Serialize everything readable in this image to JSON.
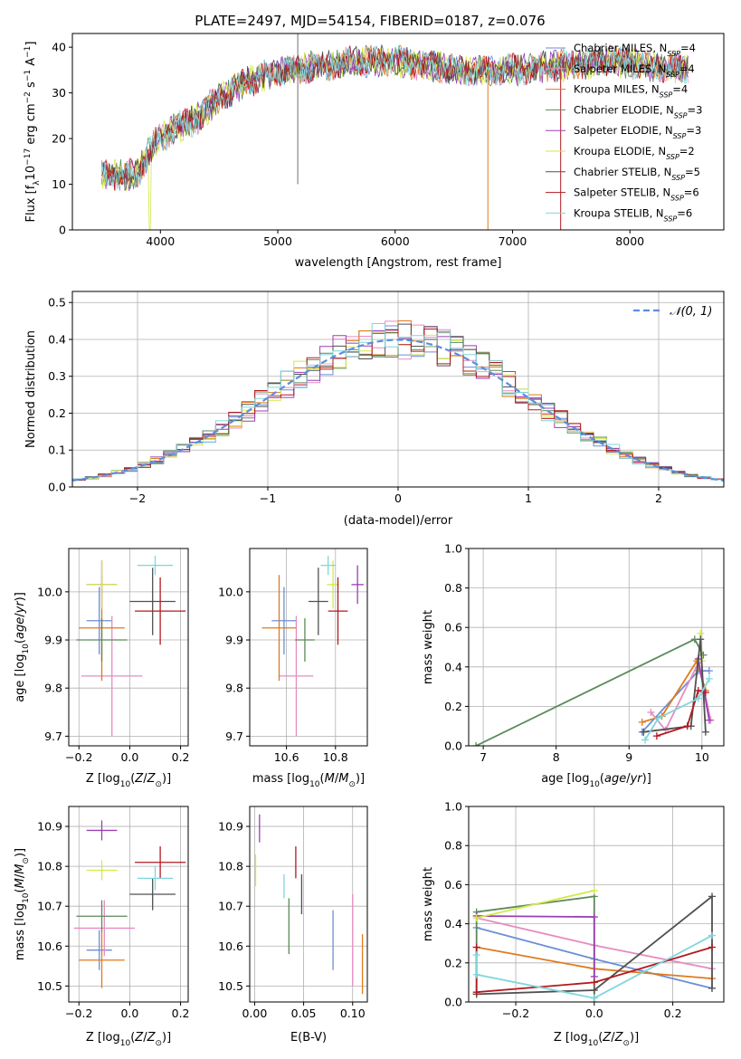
{
  "colors": {
    "Chabrier MILES": "#6b8fd6",
    "Salpeter MILES": "#e68cc0",
    "Kroupa MILES": "#e07a1f",
    "Chabrier ELODIE": "#5a8a5a",
    "Salpeter ELODIE": "#9b3fb5",
    "Kroupa ELODIE": "#d4e84a",
    "Chabrier STELIB": "#505050",
    "Salpeter STELIB": "#b3181f",
    "Kroupa STELIB": "#7fd6dc"
  },
  "chart_data": [
    {
      "type": "line",
      "title": "PLATE=2497, MJD=54154, FIBERID=0187, z=0.076",
      "xlabel": "wavelength [Angstrom, rest frame]",
      "ylabel": "Flux [f_λ10^-17 erg cm^-2 s^-1 A^-1]",
      "xlim": [
        3250,
        8800
      ],
      "ylim": [
        0,
        43
      ],
      "xticks": [
        "4000",
        "5000",
        "6000",
        "7000",
        "8000"
      ],
      "yticks": [
        "0",
        "10",
        "20",
        "30",
        "40"
      ],
      "legend_position": "right",
      "legend": [
        {
          "base": "Chabrier MILES, N",
          "sub": "SSP",
          "tail": "=4"
        },
        {
          "base": "Salpeter MILES, N",
          "sub": "SSP",
          "tail": "=4"
        },
        {
          "base": "Kroupa MILES, N",
          "sub": "SSP",
          "tail": "=4"
        },
        {
          "base": "Chabrier ELODIE, N",
          "sub": "SSP",
          "tail": "=3"
        },
        {
          "base": "Salpeter ELODIE, N",
          "sub": "SSP",
          "tail": "=3"
        },
        {
          "base": "Kroupa ELODIE, N",
          "sub": "SSP",
          "tail": "=2"
        },
        {
          "base": "Chabrier STELIB, N",
          "sub": "SSP",
          "tail": "=5"
        },
        {
          "base": "Salpeter STELIB, N",
          "sub": "SSP",
          "tail": "=6"
        },
        {
          "base": "Kroupa STELIB, N",
          "sub": "SSP",
          "tail": "=6"
        }
      ],
      "spectrum_knots": [
        [
          3500,
          12
        ],
        [
          3800,
          12
        ],
        [
          3950,
          19
        ],
        [
          4100,
          22
        ],
        [
          4300,
          24
        ],
        [
          4500,
          29
        ],
        [
          4700,
          32
        ],
        [
          4900,
          34
        ],
        [
          5100,
          35
        ],
        [
          5400,
          36
        ],
        [
          5700,
          37
        ],
        [
          6000,
          37
        ],
        [
          6300,
          36
        ],
        [
          6600,
          35
        ],
        [
          7000,
          35
        ],
        [
          7400,
          36
        ],
        [
          7800,
          37
        ],
        [
          8200,
          36
        ],
        [
          8500,
          35
        ]
      ],
      "grid": false
    },
    {
      "type": "step",
      "xlabel": "(data-model)/error",
      "ylabel": "Normed distribution",
      "xlim": [
        -2.5,
        2.5
      ],
      "ylim": [
        0,
        0.53
      ],
      "xticks": [
        {
          "v": -2,
          "label": "−2"
        },
        {
          "v": -1,
          "label": "−1"
        },
        {
          "v": 0,
          "label": "0"
        },
        {
          "v": 1,
          "label": "1"
        },
        {
          "v": 2,
          "label": "2"
        }
      ],
      "yticks": [
        "0.0",
        "0.1",
        "0.2",
        "0.3",
        "0.4",
        "0.5"
      ],
      "legend": "𝒩(0, 1)",
      "legend_position": "top-right",
      "bin_width": 0.1,
      "curve": "normal pdf, mean 0, sigma 1",
      "grid": true
    },
    {
      "type": "scatter",
      "xlabel": "Z [log10(Z/Z☉)]",
      "ylabel": "age [log10(age/yr)]",
      "xlim": [
        -0.24,
        0.23
      ],
      "ylim": [
        9.68,
        10.09
      ],
      "xticks": [
        "−0.2",
        "0.0",
        "0.2"
      ],
      "yticks": [
        "9.7",
        "9.8",
        "9.9",
        "10.0"
      ],
      "points": [
        {
          "model": "Chabrier MILES",
          "x": -0.12,
          "xerr": 0.05,
          "y": 9.94,
          "yerr": 0.07
        },
        {
          "model": "Salpeter MILES",
          "x": -0.07,
          "xerr": 0.12,
          "y": 9.825,
          "yerr": 0.125
        },
        {
          "model": "Kroupa MILES",
          "x": -0.11,
          "xerr": 0.09,
          "y": 9.925,
          "yerr": 0.11
        },
        {
          "model": "Chabrier ELODIE",
          "x": -0.11,
          "xerr": 0.1,
          "y": 9.9,
          "yerr": 0.045
        },
        {
          "model": "Salpeter ELODIE",
          "x": -0.11,
          "xerr": 0.06,
          "y": 10.015,
          "yerr": 0.05
        },
        {
          "model": "Kroupa ELODIE",
          "x": -0.11,
          "xerr": 0.06,
          "y": 10.015,
          "yerr": 0.05
        },
        {
          "model": "Chabrier STELIB",
          "x": 0.09,
          "xerr": 0.09,
          "y": 9.98,
          "yerr": 0.07
        },
        {
          "model": "Salpeter STELIB",
          "x": 0.12,
          "xerr": 0.1,
          "y": 9.96,
          "yerr": 0.07
        },
        {
          "model": "Kroupa STELIB",
          "x": 0.1,
          "xerr": 0.07,
          "y": 10.055,
          "yerr": 0.02
        }
      ],
      "grid": true
    },
    {
      "type": "scatter",
      "xlabel": "mass [log10(M/M☉)]",
      "ylabel": "",
      "xlim": [
        10.45,
        10.93
      ],
      "ylim": [
        9.68,
        10.09
      ],
      "xticks": [
        "10.6",
        "10.8"
      ],
      "yticks": [
        "9.7",
        "9.8",
        "9.9",
        "10.0"
      ],
      "points": [
        {
          "model": "Chabrier MILES",
          "x": 10.59,
          "xerr": 0.05,
          "y": 9.94,
          "yerr": 0.07
        },
        {
          "model": "Salpeter MILES",
          "x": 10.64,
          "xerr": 0.07,
          "y": 9.825,
          "yerr": 0.125
        },
        {
          "model": "Kroupa MILES",
          "x": 10.57,
          "xerr": 0.07,
          "y": 9.925,
          "yerr": 0.11
        },
        {
          "model": "Chabrier ELODIE",
          "x": 10.675,
          "xerr": 0.04,
          "y": 9.9,
          "yerr": 0.045
        },
        {
          "model": "Salpeter ELODIE",
          "x": 10.89,
          "xerr": 0.025,
          "y": 10.015,
          "yerr": 0.04
        },
        {
          "model": "Kroupa ELODIE",
          "x": 10.79,
          "xerr": 0.025,
          "y": 10.015,
          "yerr": 0.05
        },
        {
          "model": "Chabrier STELIB",
          "x": 10.73,
          "xerr": 0.04,
          "y": 9.98,
          "yerr": 0.07
        },
        {
          "model": "Salpeter STELIB",
          "x": 10.81,
          "xerr": 0.04,
          "y": 9.96,
          "yerr": 0.07
        },
        {
          "model": "Kroupa STELIB",
          "x": 10.77,
          "xerr": 0.03,
          "y": 10.055,
          "yerr": 0.02
        }
      ],
      "grid": true
    },
    {
      "type": "line",
      "xlabel": "age [log10(age/yr)]",
      "ylabel": "mass weight",
      "xlim": [
        6.8,
        10.3
      ],
      "ylim": [
        0,
        1
      ],
      "xticks": [
        "7",
        "8",
        "9",
        "10"
      ],
      "yticks": [
        "0.0",
        "0.2",
        "0.4",
        "0.6",
        "0.8",
        "1.0"
      ],
      "series": [
        {
          "model": "Chabrier MILES",
          "points": [
            [
              9.18,
              0.07
            ],
            [
              9.95,
              0.38
            ],
            [
              10.1,
              0.38
            ]
          ]
        },
        {
          "model": "Salpeter MILES",
          "points": [
            [
              9.3,
              0.17
            ],
            [
              9.5,
              0.08
            ],
            [
              9.95,
              0.42
            ],
            [
              10.12,
              0.13
            ]
          ]
        },
        {
          "model": "Kroupa MILES",
          "points": [
            [
              9.18,
              0.12
            ],
            [
              9.45,
              0.15
            ],
            [
              9.93,
              0.43
            ],
            [
              10.05,
              0.28
            ]
          ]
        },
        {
          "model": "Chabrier ELODIE",
          "points": [
            [
              6.9,
              0.0
            ],
            [
              9.9,
              0.54
            ],
            [
              10.02,
              0.46
            ]
          ]
        },
        {
          "model": "Salpeter ELODIE",
          "points": [
            [
              9.95,
              0.44
            ],
            [
              10.1,
              0.13
            ]
          ]
        },
        {
          "model": "Kroupa ELODIE",
          "points": [
            [
              9.98,
              0.57
            ],
            [
              10.0,
              0.43
            ]
          ]
        },
        {
          "model": "Chabrier STELIB",
          "points": [
            [
              9.2,
              0.07
            ],
            [
              9.85,
              0.1
            ],
            [
              9.98,
              0.54
            ],
            [
              10.05,
              0.07
            ]
          ]
        },
        {
          "model": "Salpeter STELIB",
          "points": [
            [
              9.38,
              0.05
            ],
            [
              9.8,
              0.1
            ],
            [
              9.95,
              0.28
            ],
            [
              10.05,
              0.27
            ]
          ]
        },
        {
          "model": "Kroupa STELIB",
          "points": [
            [
              9.22,
              0.03
            ],
            [
              9.4,
              0.14
            ],
            [
              9.95,
              0.24
            ],
            [
              10.1,
              0.34
            ]
          ]
        }
      ],
      "grid": true
    },
    {
      "type": "scatter",
      "xlabel": "Z [log10(Z/Z☉)]",
      "ylabel": "mass [log10(M/M☉)]",
      "xlim": [
        -0.24,
        0.23
      ],
      "ylim": [
        10.46,
        10.95
      ],
      "xticks": [
        "−0.2",
        "0.0",
        "0.2"
      ],
      "yticks": [
        "10.5",
        "10.6",
        "10.7",
        "10.8",
        "10.9"
      ],
      "points": [
        {
          "model": "Chabrier MILES",
          "x": -0.12,
          "xerr": 0.05,
          "y": 10.59,
          "yerr": 0.05
        },
        {
          "model": "Salpeter MILES",
          "x": -0.1,
          "xerr": 0.12,
          "y": 10.645,
          "yerr": 0.07
        },
        {
          "model": "Kroupa MILES",
          "x": -0.11,
          "xerr": 0.09,
          "y": 10.565,
          "yerr": 0.07
        },
        {
          "model": "Chabrier ELODIE",
          "x": -0.11,
          "xerr": 0.1,
          "y": 10.675,
          "yerr": 0.04
        },
        {
          "model": "Salpeter ELODIE",
          "x": -0.11,
          "xerr": 0.06,
          "y": 10.89,
          "yerr": 0.025
        },
        {
          "model": "Kroupa ELODIE",
          "x": -0.11,
          "xerr": 0.06,
          "y": 10.79,
          "yerr": 0.025
        },
        {
          "model": "Chabrier STELIB",
          "x": 0.09,
          "xerr": 0.09,
          "y": 10.73,
          "yerr": 0.04
        },
        {
          "model": "Salpeter STELIB",
          "x": 0.12,
          "xerr": 0.1,
          "y": 10.81,
          "yerr": 0.04
        },
        {
          "model": "Kroupa STELIB",
          "x": 0.1,
          "xerr": 0.07,
          "y": 10.77,
          "yerr": 0.03
        }
      ],
      "grid": true
    },
    {
      "type": "scatter",
      "xlabel": "E(B-V)",
      "ylabel": "",
      "xlim": [
        -0.005,
        0.115
      ],
      "ylim": [
        10.46,
        10.95
      ],
      "xticks": [
        "0.00",
        "0.05",
        "0.10"
      ],
      "yticks": [
        "10.5",
        "10.6",
        "10.7",
        "10.8",
        "10.9"
      ],
      "points": [
        {
          "model": "Chabrier MILES",
          "x": 0.08,
          "xerr": 0,
          "y": 10.615,
          "yerr": 0.075
        },
        {
          "model": "Salpeter MILES",
          "x": 0.1,
          "xerr": 0,
          "y": 10.615,
          "yerr": 0.115
        },
        {
          "model": "Kroupa MILES",
          "x": 0.11,
          "xerr": 0,
          "y": 10.555,
          "yerr": 0.075
        },
        {
          "model": "Chabrier ELODIE",
          "x": 0.035,
          "xerr": 0,
          "y": 10.65,
          "yerr": 0.07
        },
        {
          "model": "Salpeter ELODIE",
          "x": 0.005,
          "xerr": 0,
          "y": 10.895,
          "yerr": 0.035
        },
        {
          "model": "Kroupa ELODIE",
          "x": 0.001,
          "xerr": 0,
          "y": 10.79,
          "yerr": 0.04
        },
        {
          "model": "Chabrier STELIB",
          "x": 0.048,
          "xerr": 0,
          "y": 10.73,
          "yerr": 0.05
        },
        {
          "model": "Salpeter STELIB",
          "x": 0.042,
          "xerr": 0,
          "y": 10.81,
          "yerr": 0.04
        },
        {
          "model": "Kroupa STELIB",
          "x": 0.03,
          "xerr": 0,
          "y": 10.75,
          "yerr": 0.03
        }
      ],
      "grid": true
    },
    {
      "type": "line",
      "xlabel": "Z [log10(Z/Z☉)]",
      "ylabel": "mass weight",
      "xlim": [
        -0.32,
        0.33
      ],
      "ylim": [
        0,
        1
      ],
      "xticks": [
        "−0.2",
        "0.0",
        "0.2"
      ],
      "yticks": [
        "0.0",
        "0.2",
        "0.4",
        "0.6",
        "0.8",
        "1.0"
      ],
      "series": [
        {
          "model": "Chabrier MILES",
          "points": [
            [
              -0.3,
              0.38
            ],
            [
              0.0,
              0.22
            ],
            [
              0.3,
              0.07
            ]
          ]
        },
        {
          "model": "Salpeter MILES",
          "points": [
            [
              -0.3,
              0.43
            ],
            [
              0.0,
              0.29
            ],
            [
              0.3,
              0.17
            ]
          ]
        },
        {
          "model": "Kroupa MILES",
          "points": [
            [
              -0.3,
              0.28
            ],
            [
              0.0,
              0.17
            ],
            [
              0.3,
              0.12
            ]
          ]
        },
        {
          "model": "Chabrier ELODIE",
          "points": [
            [
              -0.3,
              0.04
            ],
            [
              -0.3,
              0.46
            ],
            [
              0.0,
              0.54
            ],
            [
              0.0,
              0.0
            ]
          ]
        },
        {
          "model": "Salpeter ELODIE",
          "points": [
            [
              -0.3,
              0.44
            ],
            [
              0.0,
              0.435
            ],
            [
              0.0,
              0.13
            ]
          ]
        },
        {
          "model": "Kroupa ELODIE",
          "points": [
            [
              -0.3,
              0.43
            ],
            [
              0.0,
              0.57
            ]
          ]
        },
        {
          "model": "Chabrier STELIB",
          "points": [
            [
              -0.3,
              0.04
            ],
            [
              0.0,
              0.06
            ],
            [
              0.3,
              0.54
            ],
            [
              0.3,
              0.07
            ]
          ]
        },
        {
          "model": "Salpeter STELIB",
          "points": [
            [
              -0.3,
              0.28
            ],
            [
              -0.3,
              0.05
            ],
            [
              0.0,
              0.1
            ],
            [
              0.3,
              0.28
            ]
          ]
        },
        {
          "model": "Kroupa STELIB",
          "points": [
            [
              -0.3,
              0.24
            ],
            [
              -0.3,
              0.14
            ],
            [
              0.0,
              0.02
            ],
            [
              0.3,
              0.34
            ]
          ]
        }
      ],
      "grid": true
    }
  ]
}
